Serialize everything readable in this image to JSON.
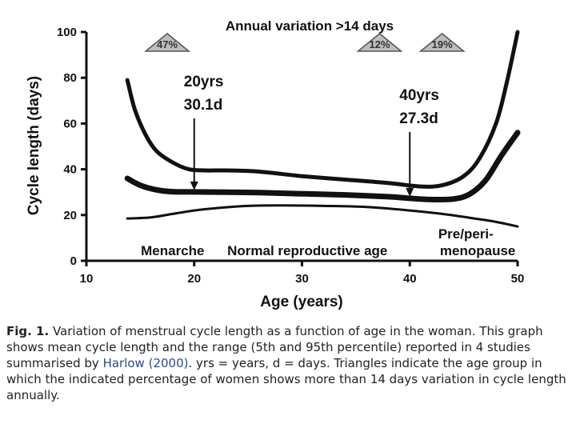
{
  "chart_data": {
    "type": "line",
    "title": "Annual variation >14 days",
    "xlabel": "Age (years)",
    "ylabel": "Cycle length (days)",
    "xlim": [
      10,
      50
    ],
    "ylim": [
      0,
      100
    ],
    "xticks": [
      10,
      20,
      30,
      40,
      50
    ],
    "yticks": [
      0,
      20,
      40,
      60,
      80,
      100
    ],
    "series": [
      {
        "name": "95th percentile",
        "stroke": "#111111",
        "width": 5,
        "x": [
          13.8,
          14.5,
          15.5,
          16.5,
          18,
          19.5,
          21,
          23,
          26,
          30,
          34,
          38,
          41,
          43,
          45,
          46.5,
          48,
          49,
          50
        ],
        "y": [
          79,
          66,
          55,
          48,
          43,
          40,
          39.5,
          39.5,
          39,
          37,
          35.5,
          34,
          32.5,
          33,
          37,
          45,
          60,
          78,
          100
        ]
      },
      {
        "name": "Mean",
        "stroke": "#111111",
        "width": 7,
        "x": [
          13.8,
          15,
          16.5,
          18,
          20,
          23,
          26,
          30,
          34,
          38,
          40,
          42,
          44,
          45.5,
          47,
          48.5,
          50
        ],
        "y": [
          36,
          33,
          31,
          30.2,
          30.1,
          30,
          29.8,
          29.3,
          28.8,
          28,
          27.3,
          26.8,
          27,
          29,
          35,
          46,
          56
        ]
      },
      {
        "name": "5th percentile",
        "stroke": "#111111",
        "width": 3,
        "x": [
          13.8,
          16,
          18,
          20,
          22,
          25,
          28,
          32,
          36,
          40,
          43,
          46,
          48,
          50
        ],
        "y": [
          18.5,
          19,
          20.5,
          22,
          23,
          24,
          24.2,
          24,
          23.5,
          22,
          20.5,
          18.5,
          17,
          15
        ]
      }
    ],
    "triangles": [
      {
        "age": 17.5,
        "label": "47%"
      },
      {
        "age": 37.2,
        "label": "12%"
      },
      {
        "age": 43,
        "label": "19%"
      }
    ],
    "annotations": [
      {
        "line1": "20yrs",
        "line2": "30.1d",
        "x": 20,
        "y": 30.1
      },
      {
        "line1": "40yrs",
        "line2": "27.3d",
        "x": 40,
        "y": 27.3
      }
    ],
    "phases": [
      {
        "label": "Menarche",
        "x": 18
      },
      {
        "label": "Normal reproductive age",
        "x": 30.5
      },
      {
        "label": "Pre/peri-",
        "x": 45.2
      },
      {
        "label": "menopause",
        "x": 46.3
      }
    ]
  },
  "caption": {
    "fig_label": "Fig. 1.",
    "text_before": " Variation of menstrual cycle length as a function of age in the woman. This graph shows mean cycle length and the range (5th and 95th percentile) reported in 4 studies summarised by ",
    "reference": "Harlow (2000)",
    "text_after": ". yrs = years, d = days. Triangles indicate the age group in which the indicated percentage of women shows more than 14 days variation in cycle length annually."
  }
}
